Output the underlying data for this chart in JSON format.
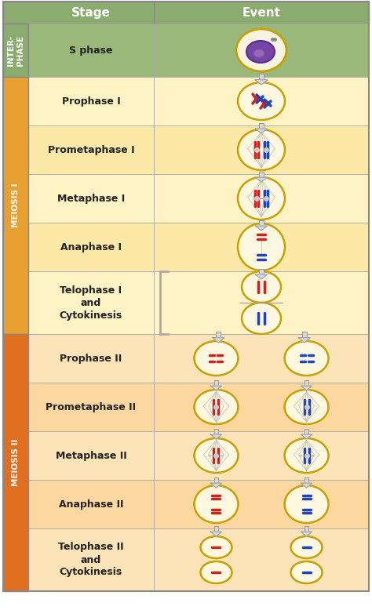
{
  "figsize": [
    4.74,
    7.78
  ],
  "dpi": 100,
  "header_bg": "#8aac6e",
  "header_text_color": "#ffffff",
  "interphase_bg": "#9ab87a",
  "meiosis1_row_bgs": [
    "#fdf3c4",
    "#fce9a8",
    "#fdf3c4",
    "#fce9a8",
    "#fdf3c4"
  ],
  "meiosis2_row_bgs": [
    "#fde4b8",
    "#fcd8a0",
    "#fde4b8",
    "#fcd8a0",
    "#fde4b8"
  ],
  "group_colors": {
    "INTERPHASE": "#8aac6e",
    "MEIOSIS_I": "#e8a030",
    "MEIOSIS_II": "#e07020"
  },
  "stages": [
    "S phase",
    "Prophase I",
    "Prometaphase I",
    "Metaphase I",
    "Anaphase I",
    "Telophase I\nand\nCytokinesis",
    "Prophase II",
    "Prometaphase II",
    "Metaphase II",
    "Anaphase II",
    "Telophase II\nand\nCytokinesis"
  ],
  "border_color": "#aaaaaa",
  "cell_border": "#c8a000",
  "cell_fill": "#fef8e0",
  "red": "#cc2222",
  "blue": "#2244bb",
  "arrow_color": "#cccccc",
  "arrow_edge": "#999999"
}
